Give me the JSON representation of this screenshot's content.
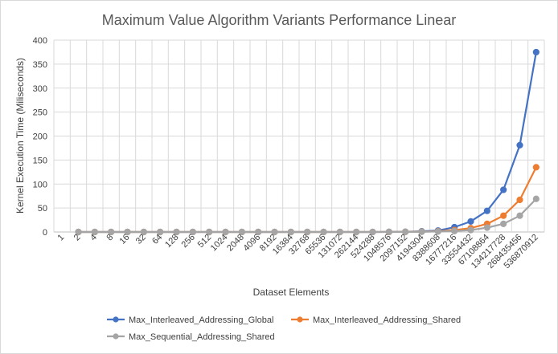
{
  "chart_data": {
    "type": "line",
    "title": "Maximum Value Algorithm Variants Performance Linear",
    "xlabel": "Dataset Elements",
    "ylabel": "Kernel Execution Time (Miliseconds)",
    "ylim": [
      0,
      400
    ],
    "yticks": [
      0,
      50,
      100,
      150,
      200,
      250,
      300,
      350,
      400
    ],
    "grid": true,
    "legend_position": "bottom",
    "categories": [
      "1",
      "2",
      "4",
      "8",
      "16",
      "32",
      "64",
      "128",
      "256",
      "512",
      "1024",
      "2048",
      "4096",
      "8192",
      "16384",
      "32768",
      "65536",
      "131072",
      "262144",
      "524288",
      "1048576",
      "2097152",
      "4194304",
      "8388608",
      "16777216",
      "33554432",
      "67108864",
      "134217728",
      "268435456",
      "536870912"
    ],
    "series": [
      {
        "name": "Max_Interleaved_Addressing_Global",
        "color": "#4472c4",
        "values": [
          null,
          0,
          0,
          0,
          0,
          0,
          0,
          0,
          0,
          0,
          0,
          0,
          0,
          0,
          0,
          0,
          0,
          0,
          0,
          0,
          0.2,
          0.5,
          1.5,
          3,
          10,
          22,
          44,
          88,
          181,
          375
        ]
      },
      {
        "name": "Max_Interleaved_Addressing_Shared",
        "color": "#ed7d31",
        "values": [
          null,
          0,
          0,
          0,
          0,
          0,
          0,
          0,
          0,
          0,
          0,
          0,
          0,
          0,
          0,
          0,
          0,
          0,
          0,
          0,
          0.1,
          0.3,
          0.6,
          1.5,
          4,
          8,
          17,
          34,
          67,
          135
        ]
      },
      {
        "name": "Max_Sequential_Addressing_Shared",
        "color": "#a5a5a5",
        "values": [
          null,
          0,
          0,
          0,
          0,
          0,
          0,
          0,
          0,
          0,
          0,
          0,
          0,
          0,
          0,
          0,
          0,
          0,
          0,
          0,
          0.1,
          0.2,
          0.4,
          1,
          2,
          4,
          9,
          17,
          34,
          69
        ]
      }
    ]
  }
}
